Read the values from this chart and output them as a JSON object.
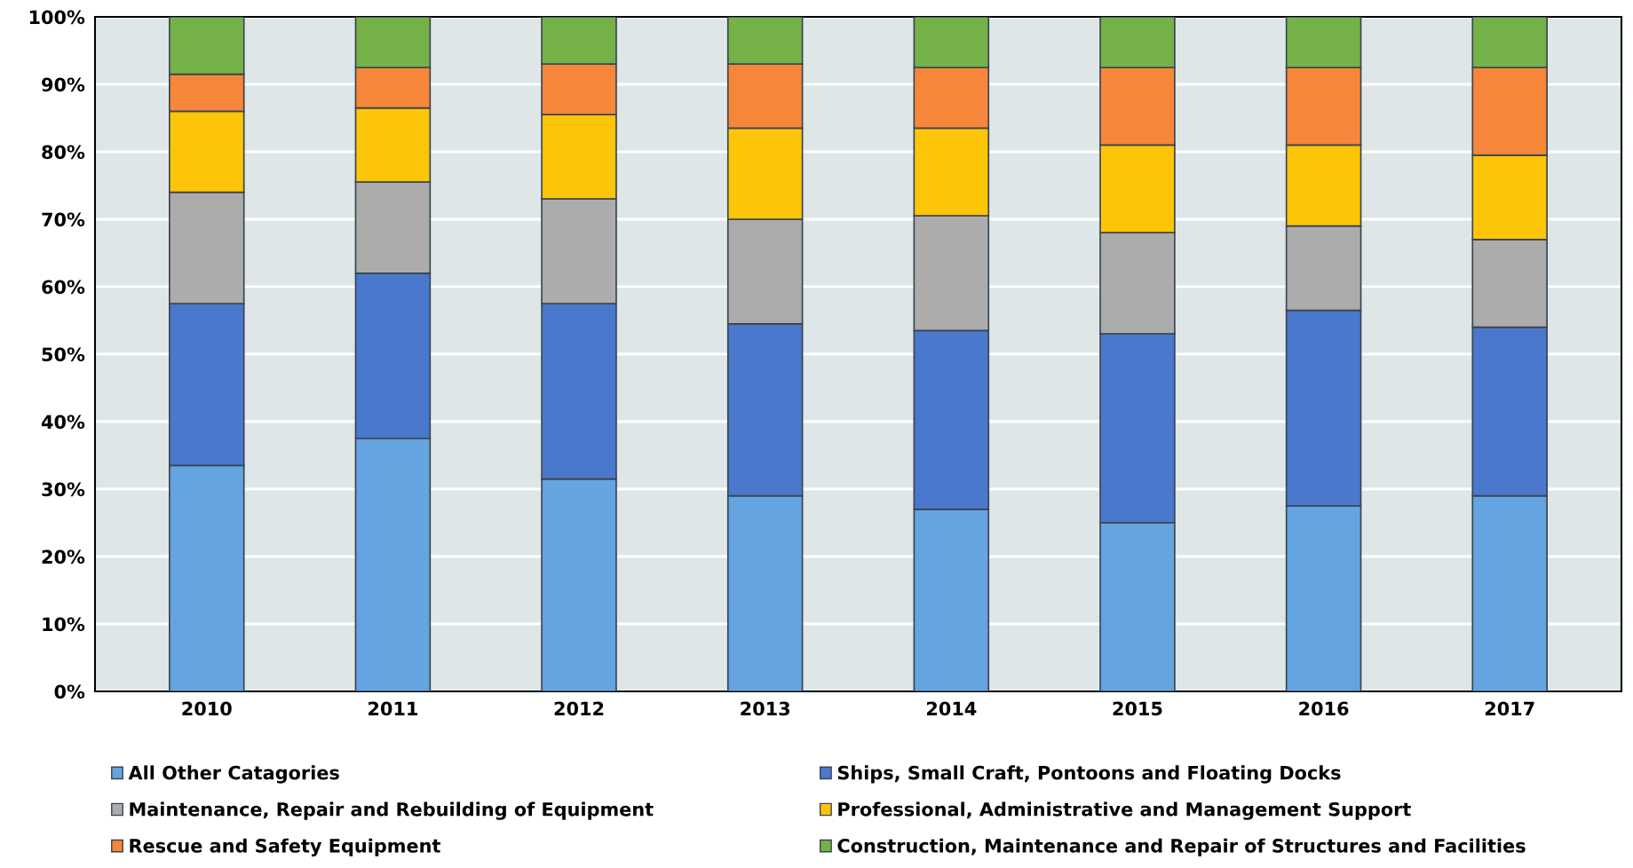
{
  "chart_data": {
    "type": "bar",
    "stacked": true,
    "categories": [
      "2010",
      "2011",
      "2012",
      "2013",
      "2014",
      "2015",
      "2016",
      "2017"
    ],
    "series": [
      {
        "name": "All Other Catagories",
        "color": "#64a4e0",
        "values": [
          33.5,
          37.5,
          31.5,
          29,
          27,
          25,
          27.5,
          29
        ]
      },
      {
        "name": "Ships, Small Craft, Pontoons and Floating Docks",
        "color": "#4a78cc",
        "values": [
          24,
          24.5,
          26,
          25.5,
          26.5,
          28,
          29,
          25
        ]
      },
      {
        "name": "Maintenance, Repair and Rebuilding of Equipment",
        "color": "#acacac",
        "values": [
          16.5,
          13.5,
          15.5,
          15.5,
          17,
          15,
          12.5,
          13
        ]
      },
      {
        "name": "Professional, Administrative and Management Support",
        "color": "#fdc508",
        "values": [
          12,
          11,
          12.5,
          13.5,
          13,
          13,
          12,
          12.5
        ]
      },
      {
        "name": "Rescue and Safety Equipment",
        "color": "#f6863a",
        "values": [
          5.5,
          6,
          7.5,
          9.5,
          9,
          11.5,
          11.5,
          13
        ]
      },
      {
        "name": "Construction, Maintenance and Repair of Structures and Facilities",
        "color": "#74b248",
        "values": [
          8.5,
          7.5,
          7,
          7,
          7.5,
          7.5,
          7.5,
          7.5
        ]
      }
    ],
    "ylim": [
      0,
      100
    ],
    "yticks": [
      {
        "value": 0,
        "label": "0%"
      },
      {
        "value": 10,
        "label": "10%"
      },
      {
        "value": 20,
        "label": "20%"
      },
      {
        "value": 30,
        "label": "30%"
      },
      {
        "value": 40,
        "label": "40%"
      },
      {
        "value": 50,
        "label": "50%"
      },
      {
        "value": 60,
        "label": "60%"
      },
      {
        "value": 70,
        "label": "70%"
      },
      {
        "value": 80,
        "label": "80%"
      },
      {
        "value": 90,
        "label": "90%"
      },
      {
        "value": 100,
        "label": "100%"
      }
    ],
    "grid": "y",
    "legend": "bottom"
  }
}
